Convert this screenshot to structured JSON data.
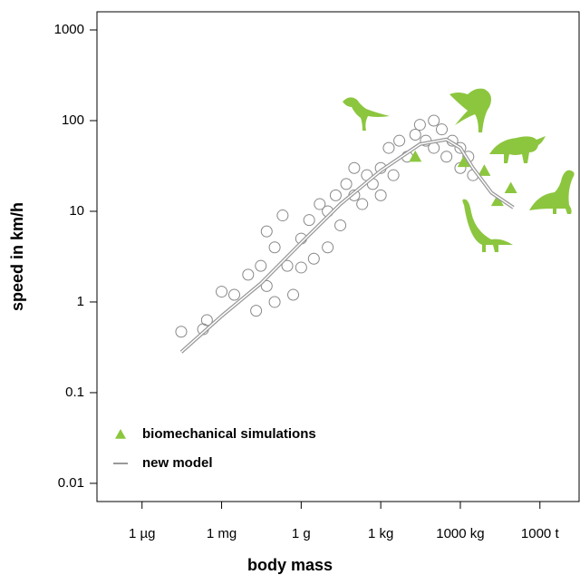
{
  "chart_data": {
    "type": "scatter",
    "x_label": "body mass",
    "y_label": "speed in km/h",
    "xlog": true,
    "ylog": true,
    "xlim": [
      2e-11,
      30000000.0
    ],
    "ylim": [
      0.0063,
      1585
    ],
    "xticks": [
      {
        "value": 1e-09,
        "label": "1 µg"
      },
      {
        "value": 1e-06,
        "label": "1 mg"
      },
      {
        "value": 0.001,
        "label": "1 g"
      },
      {
        "value": 1,
        "label": "1 kg"
      },
      {
        "value": 1000,
        "label": "1000 kg"
      },
      {
        "value": 1000000,
        "label": "1000 t"
      }
    ],
    "yticks": [
      1000,
      100,
      10,
      1,
      0.1,
      0.01
    ],
    "legend": "lower left",
    "series": [
      {
        "type": "scatter",
        "marker": "circle",
        "color": "#888888",
        "x": [
          3e-08,
          2e-07,
          2.8e-07,
          1e-06,
          3e-06,
          1e-05,
          2e-05,
          3e-05,
          5e-05,
          5e-05,
          0.0001,
          0.0001,
          0.0002,
          0.0003,
          0.0005,
          0.001,
          0.001,
          0.002,
          0.003,
          0.005,
          0.01,
          0.01,
          0.02,
          0.03,
          0.05,
          0.1,
          0.1,
          0.2,
          0.3,
          0.5,
          1,
          1,
          2,
          3,
          5,
          10,
          20,
          30,
          50,
          100,
          100,
          200,
          300,
          500,
          1000,
          1000,
          2000,
          3000
        ],
        "values": [
          0.47,
          0.5,
          0.63,
          1.3,
          1.2,
          2,
          0.8,
          2.5,
          6,
          1.5,
          4,
          1,
          9,
          2.5,
          1.2,
          5,
          2.4,
          8,
          3,
          12,
          10,
          4,
          15,
          7,
          20,
          15,
          30,
          12,
          25,
          20,
          30,
          15,
          50,
          25,
          60,
          40,
          70,
          90,
          60,
          100,
          50,
          80,
          40,
          60,
          50,
          30,
          40,
          25
        ]
      },
      {
        "name": "biomechanical simulations",
        "type": "scatter",
        "marker": "triangle",
        "color": "#8cc63f",
        "x": [
          20,
          1350,
          8000,
          25000,
          80000
        ],
        "values": [
          40,
          35,
          28,
          13,
          18
        ]
      },
      {
        "name": "new model",
        "type": "line",
        "color": "#999999",
        "x": [
          3e-08,
          1e-06,
          3e-05,
          0.001,
          0.03,
          1,
          30,
          300,
          1000,
          3000,
          15000,
          100000
        ],
        "values": [
          0.28,
          0.7,
          1.6,
          4.5,
          12,
          28,
          55,
          62,
          50,
          30,
          16,
          11
        ]
      }
    ]
  }
}
